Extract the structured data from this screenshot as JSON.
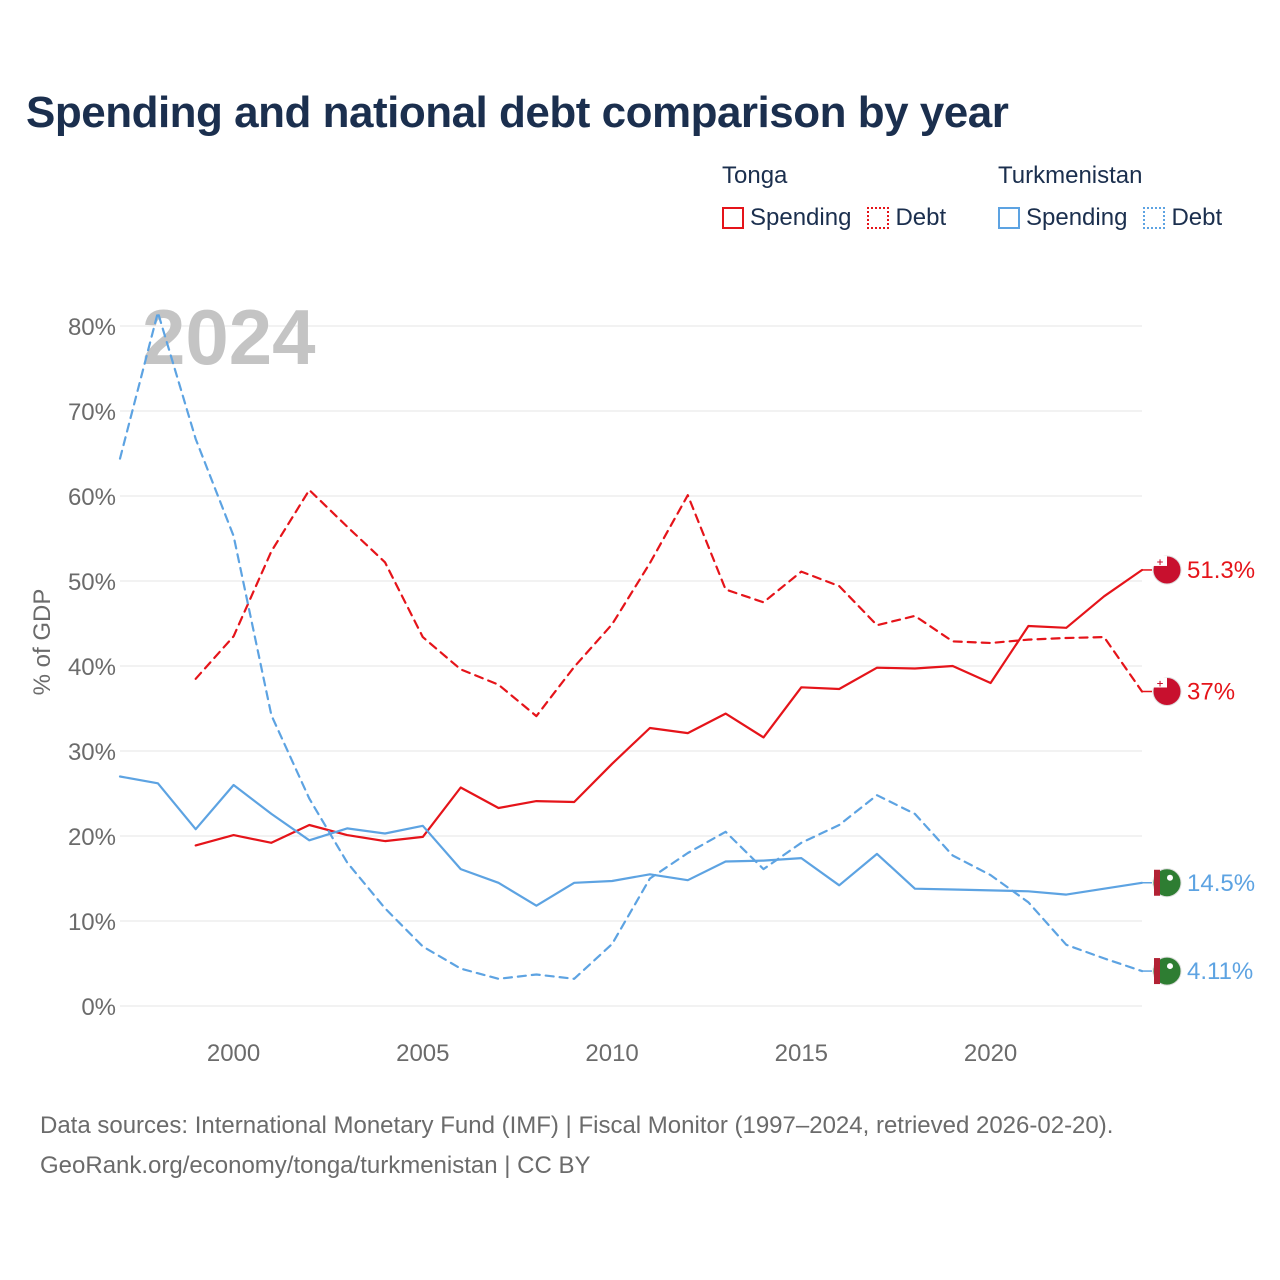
{
  "title": "Spending and national debt comparison by year",
  "legend": {
    "groups": [
      {
        "name": "Tonga",
        "items": [
          "Spending",
          "Debt"
        ]
      },
      {
        "name": "Turkmenistan",
        "items": [
          "Spending",
          "Debt"
        ]
      }
    ]
  },
  "colors": {
    "tonga": "#e5141a",
    "turkmenistan": "#5da3e2",
    "grid": "#e6e6e6",
    "axis_text": "#6b6b6b",
    "year_watermark": "#c4c4c4"
  },
  "chart_data": {
    "type": "line",
    "year_label": "2024",
    "ylabel": "% of GDP",
    "xlim": [
      1997,
      2024
    ],
    "ylim": [
      0,
      80
    ],
    "x_ticks": [
      2000,
      2005,
      2010,
      2015,
      2020
    ],
    "y_ticks": [
      0,
      10,
      20,
      30,
      40,
      50,
      60,
      70,
      80
    ],
    "y_tick_labels": [
      "0%",
      "10%",
      "20%",
      "30%",
      "40%",
      "50%",
      "60%",
      "70%",
      "80%"
    ],
    "series": [
      {
        "name": "Tonga Spending",
        "country": "tonga",
        "style": "solid",
        "end_label": "51.3%",
        "x": [
          1999,
          2000,
          2001,
          2002,
          2003,
          2004,
          2005,
          2006,
          2007,
          2008,
          2009,
          2010,
          2011,
          2012,
          2013,
          2014,
          2015,
          2016,
          2017,
          2018,
          2019,
          2020,
          2021,
          2022,
          2023,
          2024
        ],
        "values": [
          18.9,
          20.1,
          19.2,
          21.3,
          20.1,
          19.4,
          19.9,
          25.7,
          23.3,
          24.1,
          24.0,
          28.5,
          32.7,
          32.1,
          34.4,
          31.6,
          37.5,
          37.3,
          39.8,
          39.7,
          40.0,
          38.0,
          44.7,
          44.5,
          48.2,
          51.3
        ]
      },
      {
        "name": "Tonga Debt",
        "country": "tonga",
        "style": "dashed",
        "end_label": "37%",
        "x": [
          1999,
          2000,
          2001,
          2002,
          2003,
          2004,
          2005,
          2006,
          2007,
          2008,
          2009,
          2010,
          2011,
          2012,
          2013,
          2014,
          2015,
          2016,
          2017,
          2018,
          2019,
          2020,
          2021,
          2022,
          2023,
          2024
        ],
        "values": [
          38.5,
          43.5,
          53.5,
          60.7,
          56.4,
          52.2,
          43.4,
          39.6,
          37.8,
          34.1,
          39.9,
          44.9,
          52.1,
          60.1,
          49.0,
          47.5,
          51.1,
          49.4,
          44.8,
          45.9,
          42.9,
          42.7,
          43.1,
          43.3,
          43.4,
          37.0
        ]
      },
      {
        "name": "Turkmenistan Spending",
        "country": "turkmenistan",
        "style": "solid",
        "end_label": "14.5%",
        "x": [
          1997,
          1998,
          1999,
          2000,
          2001,
          2002,
          2003,
          2004,
          2005,
          2006,
          2007,
          2008,
          2009,
          2010,
          2011,
          2012,
          2013,
          2014,
          2015,
          2016,
          2017,
          2018,
          2019,
          2020,
          2021,
          2022,
          2023,
          2024
        ],
        "values": [
          27.0,
          26.2,
          20.8,
          26.0,
          22.6,
          19.5,
          20.9,
          20.3,
          21.2,
          16.1,
          14.5,
          11.8,
          14.5,
          14.7,
          15.5,
          14.8,
          17.0,
          17.1,
          17.4,
          14.2,
          17.9,
          13.8,
          13.7,
          13.6,
          13.5,
          13.1,
          13.8,
          14.5
        ]
      },
      {
        "name": "Turkmenistan Debt",
        "country": "turkmenistan",
        "style": "dashed",
        "end_label": "4.11%",
        "x": [
          1997,
          1998,
          1999,
          2000,
          2001,
          2002,
          2003,
          2004,
          2005,
          2006,
          2007,
          2008,
          2009,
          2010,
          2011,
          2012,
          2013,
          2014,
          2015,
          2016,
          2017,
          2018,
          2019,
          2020,
          2021,
          2022,
          2023,
          2024
        ],
        "values": [
          64.4,
          81.6,
          66.7,
          55.3,
          34.2,
          24.4,
          16.9,
          11.5,
          7.0,
          4.4,
          3.2,
          3.7,
          3.2,
          7.3,
          15.0,
          18.0,
          20.5,
          16.1,
          19.2,
          21.3,
          24.8,
          22.6,
          17.7,
          15.4,
          12.2,
          7.2,
          5.6,
          4.11
        ]
      }
    ]
  },
  "source": {
    "line1": "Data sources: International Monetary Fund (IMF) | Fiscal Monitor (1997–2024, retrieved 2026-02-20).",
    "line2": "GeoRank.org/economy/tonga/turkmenistan | CC BY"
  }
}
